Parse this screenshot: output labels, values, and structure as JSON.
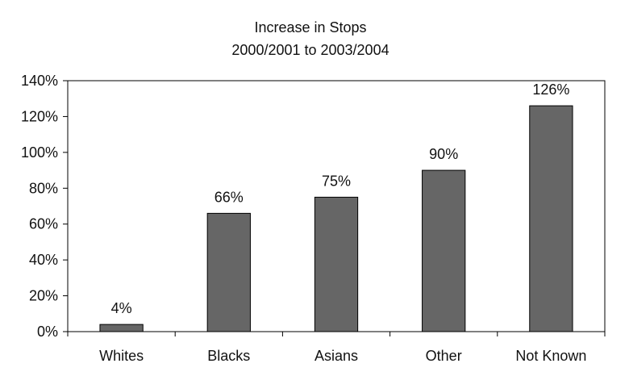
{
  "chart_data": {
    "type": "bar",
    "title_lines": [
      "Increase in Stops",
      "2000/2001 to 2003/2004"
    ],
    "categories": [
      "Whites",
      "Blacks",
      "Asians",
      "Other",
      "Not Known"
    ],
    "values": [
      4,
      66,
      75,
      90,
      126
    ],
    "data_labels": [
      "4%",
      "66%",
      "75%",
      "90%",
      "126%"
    ],
    "ylim": [
      0,
      140
    ],
    "yticks": [
      0,
      20,
      40,
      60,
      80,
      100,
      120,
      140
    ],
    "ytick_labels": [
      "0%",
      "20%",
      "40%",
      "60%",
      "80%",
      "100%",
      "120%",
      "140%"
    ],
    "xlabel": "",
    "ylabel": "",
    "grid": false,
    "legend": false,
    "colors": {
      "bar_fill": "#666666",
      "bar_stroke": "#000000",
      "axis": "#000000",
      "text": "#111111"
    }
  }
}
